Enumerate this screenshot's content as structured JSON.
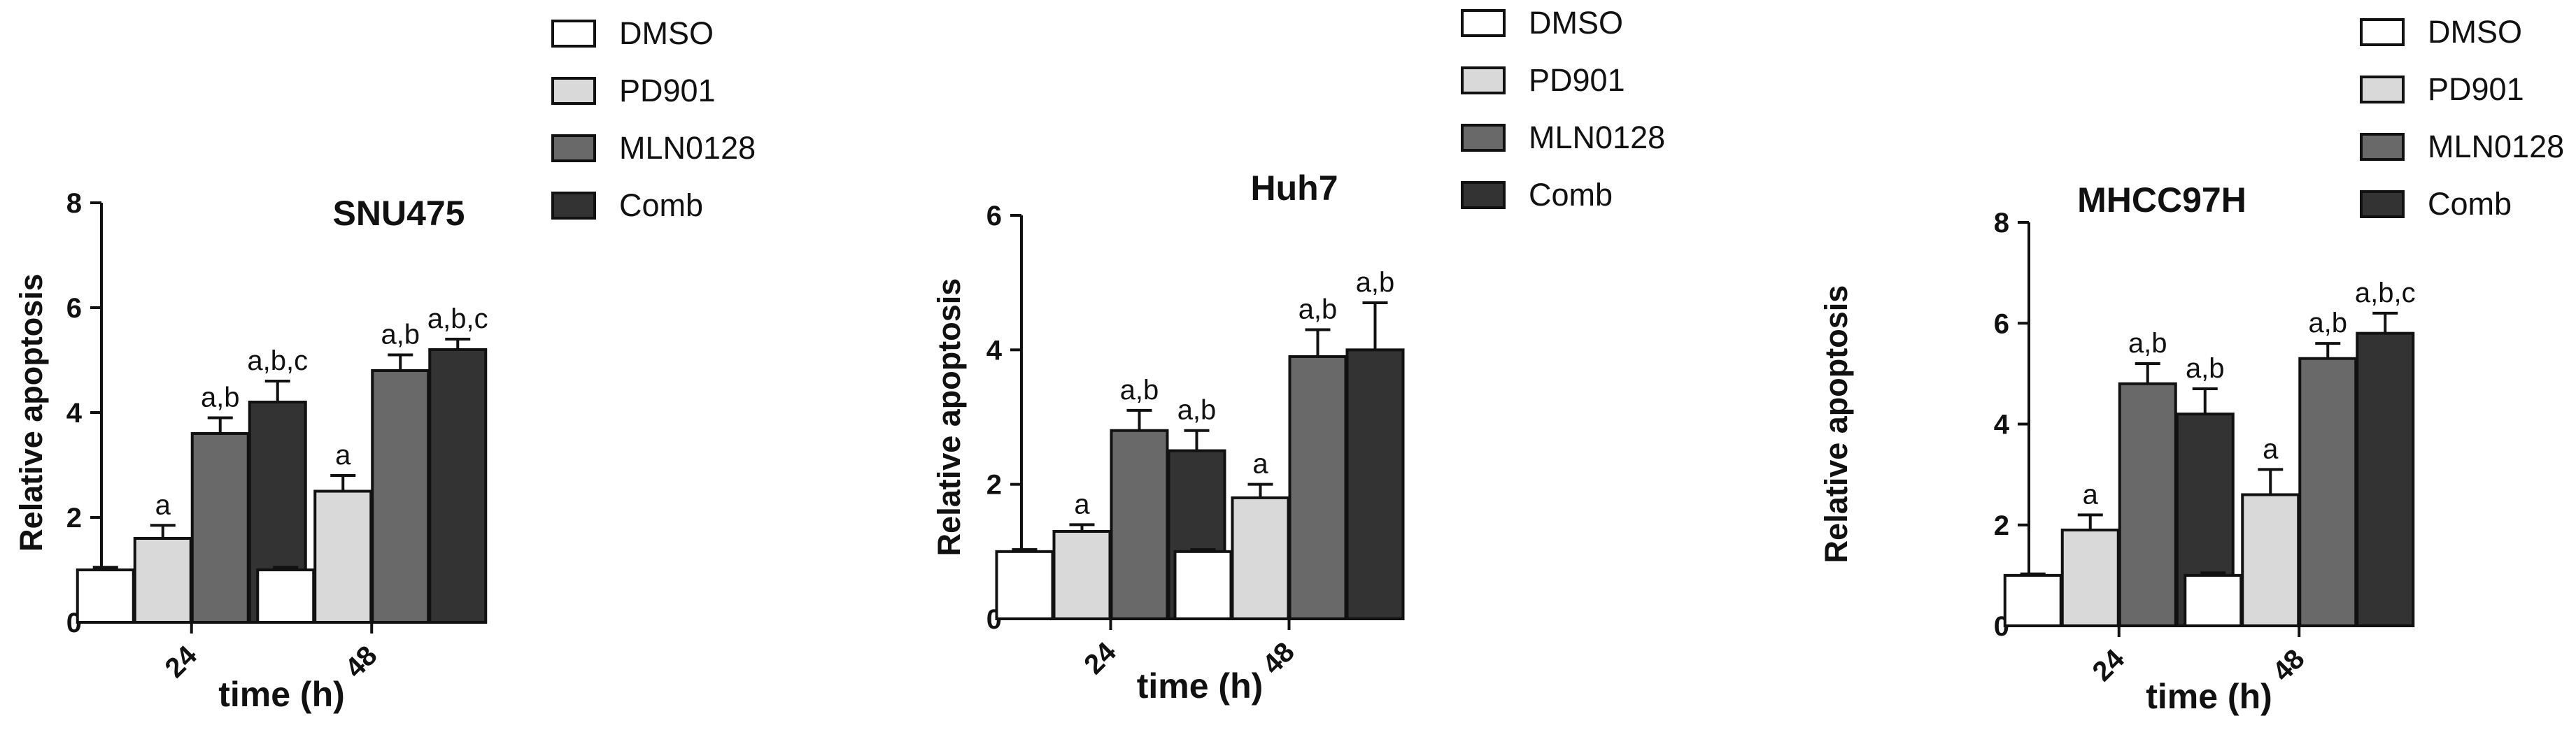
{
  "colors": {
    "DMSO": "#ffffff",
    "PD901": "#d9d9d9",
    "MLN0128": "#696969",
    "Comb": "#333333",
    "stroke": "#111111"
  },
  "chart_data": [
    {
      "type": "bar",
      "title": "SNU475",
      "xlabel": "time (h)",
      "ylabel": "Relative apoptosis",
      "categories": [
        "24",
        "48"
      ],
      "ylim": [
        0,
        8
      ],
      "yticks": [
        "0",
        "2",
        "4",
        "6",
        "8"
      ],
      "legend_position": "top-right",
      "series": [
        {
          "name": "DMSO",
          "values": [
            1.0,
            1.0
          ],
          "errors": [
            0.05,
            0.05
          ],
          "annotations": [
            "",
            ""
          ]
        },
        {
          "name": "PD901",
          "values": [
            1.6,
            2.5
          ],
          "errors": [
            0.25,
            0.3
          ],
          "annotations": [
            "a",
            "a"
          ]
        },
        {
          "name": "MLN0128",
          "values": [
            3.6,
            4.8
          ],
          "errors": [
            0.3,
            0.3
          ],
          "annotations": [
            "a,b",
            "a,b"
          ]
        },
        {
          "name": "Comb",
          "values": [
            4.2,
            5.2
          ],
          "errors": [
            0.4,
            0.2
          ],
          "annotations": [
            "a,b,c",
            "a,b,c"
          ]
        }
      ]
    },
    {
      "type": "bar",
      "title": "Huh7",
      "xlabel": "time (h)",
      "ylabel": "Relative apoptosis",
      "categories": [
        "24",
        "48"
      ],
      "ylim": [
        0,
        6
      ],
      "yticks": [
        "0",
        "2",
        "4",
        "6"
      ],
      "legend_position": "top-right",
      "series": [
        {
          "name": "DMSO",
          "values": [
            1.0,
            1.0
          ],
          "errors": [
            0.03,
            0.03
          ],
          "annotations": [
            "",
            ""
          ]
        },
        {
          "name": "PD901",
          "values": [
            1.3,
            1.8
          ],
          "errors": [
            0.1,
            0.2
          ],
          "annotations": [
            "a",
            "a"
          ]
        },
        {
          "name": "MLN0128",
          "values": [
            2.8,
            3.9
          ],
          "errors": [
            0.3,
            0.4
          ],
          "annotations": [
            "a,b",
            "a,b"
          ]
        },
        {
          "name": "Comb",
          "values": [
            2.5,
            4.0
          ],
          "errors": [
            0.3,
            0.7
          ],
          "annotations": [
            "a,b",
            "a,b"
          ]
        }
      ]
    },
    {
      "type": "bar",
      "title": "MHCC97H",
      "xlabel": "time (h)",
      "ylabel": "Relative apoptosis",
      "categories": [
        "24",
        "48"
      ],
      "ylim": [
        0,
        8
      ],
      "yticks": [
        "0",
        "2",
        "4",
        "6",
        "8"
      ],
      "legend_position": "top-right",
      "series": [
        {
          "name": "DMSO",
          "values": [
            1.0,
            1.0
          ],
          "errors": [
            0.03,
            0.05
          ],
          "annotations": [
            "",
            ""
          ]
        },
        {
          "name": "PD901",
          "values": [
            1.9,
            2.6
          ],
          "errors": [
            0.3,
            0.5
          ],
          "annotations": [
            "a",
            "a"
          ]
        },
        {
          "name": "MLN0128",
          "values": [
            4.8,
            5.3
          ],
          "errors": [
            0.4,
            0.3
          ],
          "annotations": [
            "a,b",
            "a,b"
          ]
        },
        {
          "name": "Comb",
          "values": [
            4.2,
            5.8
          ],
          "errors": [
            0.5,
            0.4
          ],
          "annotations": [
            "a,b",
            "a,b,c"
          ]
        }
      ]
    }
  ]
}
